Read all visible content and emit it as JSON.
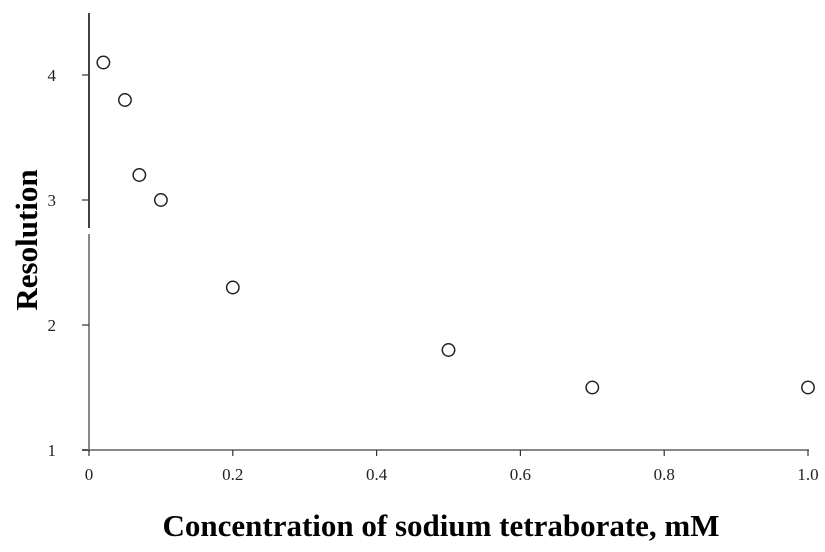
{
  "chart_data": {
    "type": "scatter",
    "title": "",
    "xlabel": "Concentration of sodium tetraborate, mM",
    "ylabel": "Resolution",
    "xlim": [
      0,
      1.0
    ],
    "ylim": [
      1,
      4.5
    ],
    "x_ticks": [
      "0",
      "0.2",
      "0.4",
      "0.6",
      "0.8",
      "1.0"
    ],
    "y_ticks": [
      "1",
      "2",
      "3",
      "4"
    ],
    "grid": false,
    "legend": null,
    "marker": "open-circle",
    "series": [
      {
        "name": "Resolution",
        "x": [
          0.02,
          0.05,
          0.07,
          0.1,
          0.2,
          0.5,
          0.7,
          1.0
        ],
        "values": [
          4.1,
          3.8,
          3.2,
          3.0,
          2.3,
          1.8,
          1.5,
          1.5
        ]
      }
    ]
  },
  "colors": {
    "marker_stroke": "#222222",
    "y_axis": "#111111",
    "x_axis": "#888888",
    "background": "#ffffff"
  }
}
